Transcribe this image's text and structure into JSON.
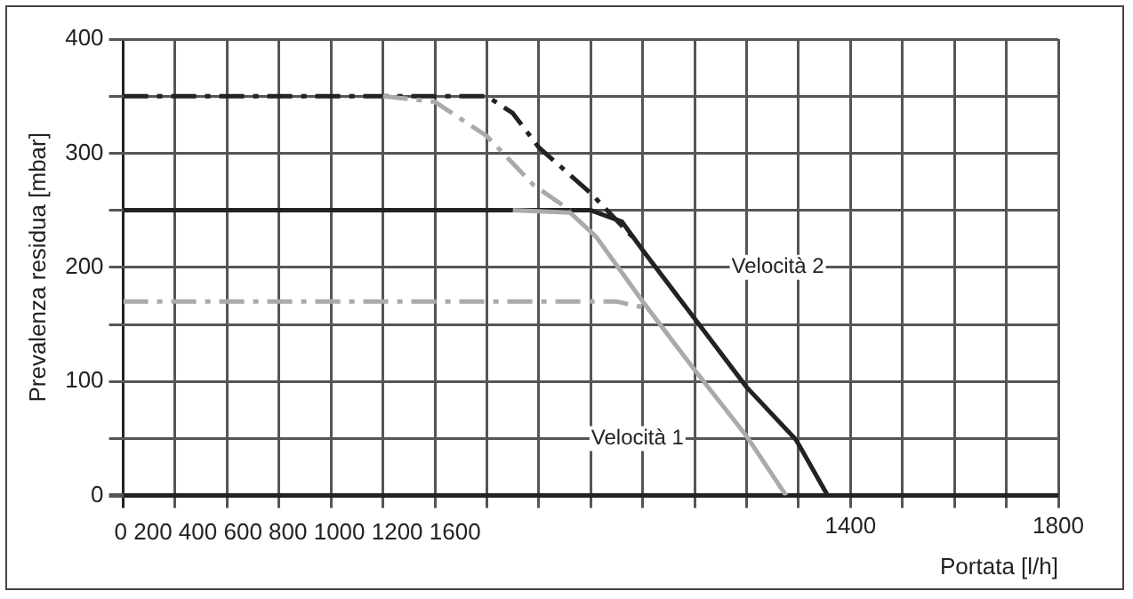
{
  "chart_data": {
    "type": "line",
    "xlabel": "Portata [l/h]",
    "ylabel": "Prevalenza residua [mbar]",
    "xlim": [
      0,
      1800
    ],
    "ylim": [
      0,
      400
    ],
    "xticks": [
      {
        "value": 0,
        "label": null
      },
      {
        "value": 100,
        "label": null
      },
      {
        "value": 200,
        "label": null
      },
      {
        "value": 300,
        "label": null
      },
      {
        "value": 400,
        "label": null
      },
      {
        "value": 500,
        "label": null
      },
      {
        "value": 600,
        "label": null
      },
      {
        "value": 700,
        "label": null
      },
      {
        "value": 800,
        "label": null
      },
      {
        "value": 900,
        "label": null
      },
      {
        "value": 1000,
        "label": null
      },
      {
        "value": 1100,
        "label": null
      },
      {
        "value": 1200,
        "label": null
      },
      {
        "value": 1300,
        "label": null
      },
      1400,
      {
        "value": 1500,
        "label": null
      },
      {
        "value": 1600,
        "label": null
      },
      {
        "value": 1700,
        "label": null
      },
      1800
    ],
    "yticks": [
      0,
      {
        "value": 50,
        "label": null
      },
      100,
      {
        "value": 150,
        "label": null
      },
      200,
      {
        "value": 250,
        "label": null
      },
      300,
      {
        "value": 350,
        "label": null
      },
      400
    ],
    "grid": true,
    "marker": "none",
    "series": [
      {
        "color": "#aaaaaa",
        "line_style": "dashdot",
        "x": [
          0,
          950,
          1000
        ],
        "values": [
          170,
          170,
          165
        ]
      },
      {
        "color": "#aaaaaa",
        "line_style": "dashdot",
        "x": [
          500,
          600,
          700,
          790,
          860
        ],
        "values": [
          350,
          345,
          315,
          272,
          250
        ]
      },
      {
        "color": "#aaaaaa",
        "line_style": "solid",
        "x": [
          750,
          860,
          910,
          1000,
          1100,
          1200,
          1276
        ],
        "values": [
          250,
          248,
          227,
          170,
          110,
          52,
          0
        ]
      },
      {
        "color": "#222222",
        "line_style": "dashdot",
        "x": [
          0,
          700,
          750,
          800,
          900,
          990
        ],
        "values": [
          350,
          350,
          335,
          305,
          265,
          222
        ]
      },
      {
        "color": "#222222",
        "line_style": "solid",
        "x": [
          0,
          900,
          960,
          1000,
          1100,
          1200,
          1295,
          1356
        ],
        "values": [
          250,
          250,
          240,
          215,
          155,
          95,
          49,
          0
        ]
      }
    ],
    "annotations": [
      "Velocità 2",
      "Velocità 1",
      "0 200 400 600 800 1000 1200 1600"
    ]
  }
}
